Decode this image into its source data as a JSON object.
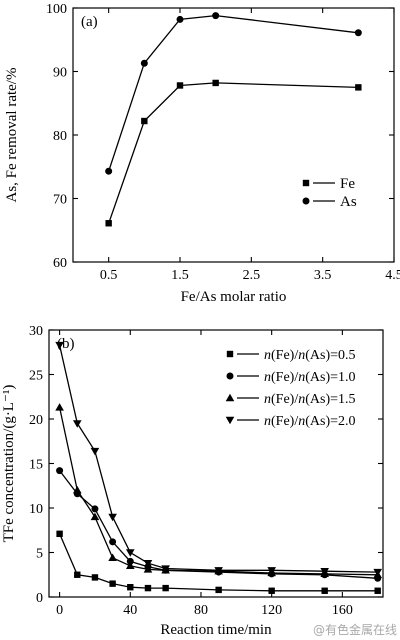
{
  "watermark": "@有色金属在线",
  "chart_data": [
    {
      "type": "line",
      "panel_label": "(a)",
      "xlabel": "Fe/As molar ratio",
      "ylabel": "As, Fe removal rate/%",
      "xlim": [
        0.0,
        4.5
      ],
      "ylim": [
        60,
        100
      ],
      "xticks": [
        0.5,
        1.5,
        2.5,
        3.5,
        4.5
      ],
      "yticks": [
        60,
        70,
        80,
        90,
        100
      ],
      "xtick_labels": [
        "0.5",
        "1.5",
        "2.5",
        "3.5",
        "4.5"
      ],
      "ytick_labels": [
        "60",
        "70",
        "80",
        "90",
        "100"
      ],
      "legend_position": "lower-right",
      "series": [
        {
          "name": "Fe",
          "marker": "square",
          "x": [
            0.5,
            1.0,
            1.5,
            2.0,
            4.0
          ],
          "y": [
            66.1,
            82.2,
            87.8,
            88.2,
            87.5
          ]
        },
        {
          "name": "As",
          "marker": "circle",
          "x": [
            0.5,
            1.0,
            1.5,
            2.0,
            4.0
          ],
          "y": [
            74.3,
            91.3,
            98.2,
            98.8,
            96.1
          ]
        }
      ]
    },
    {
      "type": "line",
      "panel_label": "(b)",
      "xlabel": "Reaction time/min",
      "ylabel": "TFe concentration/(g·L⁻¹)",
      "xlim": [
        -6,
        183
      ],
      "ylim": [
        0,
        30
      ],
      "xticks": [
        0,
        40,
        80,
        120,
        160
      ],
      "yticks": [
        0,
        5,
        10,
        15,
        20,
        25,
        30
      ],
      "xtick_labels": [
        "0",
        "40",
        "80",
        "120",
        "160"
      ],
      "ytick_labels": [
        "0",
        "5",
        "10",
        "15",
        "20",
        "25",
        "30"
      ],
      "legend_position": "top-right",
      "series": [
        {
          "name": "n(Fe)/n(As)=0.5",
          "marker": "square",
          "x": [
            0,
            10,
            20,
            30,
            40,
            50,
            60,
            90,
            120,
            150,
            180
          ],
          "y": [
            7.1,
            2.5,
            2.2,
            1.5,
            1.1,
            1.0,
            1.0,
            0.8,
            0.7,
            0.7,
            0.7
          ]
        },
        {
          "name": "n(Fe)/n(As)=1.0",
          "marker": "circle",
          "x": [
            0,
            10,
            20,
            30,
            40,
            50,
            60,
            90,
            120,
            150,
            180
          ],
          "y": [
            14.2,
            11.6,
            9.9,
            6.2,
            4.0,
            3.4,
            3.0,
            2.8,
            2.6,
            2.5,
            2.1
          ]
        },
        {
          "name": "n(Fe)/n(As)=1.5",
          "marker": "triangle-up",
          "x": [
            0,
            10,
            20,
            30,
            40,
            50,
            60,
            90,
            120,
            150,
            180
          ],
          "y": [
            21.3,
            12.0,
            9.0,
            4.4,
            3.5,
            3.1,
            3.0,
            2.9,
            2.7,
            2.6,
            2.5
          ]
        },
        {
          "name": "n(Fe)/n(As)=2.0",
          "marker": "triangle-down",
          "x": [
            0,
            10,
            20,
            30,
            40,
            50,
            60,
            90,
            120,
            150,
            180
          ],
          "y": [
            28.3,
            19.5,
            16.4,
            9.0,
            5.0,
            3.8,
            3.2,
            3.0,
            3.0,
            2.9,
            2.8
          ]
        }
      ]
    }
  ]
}
